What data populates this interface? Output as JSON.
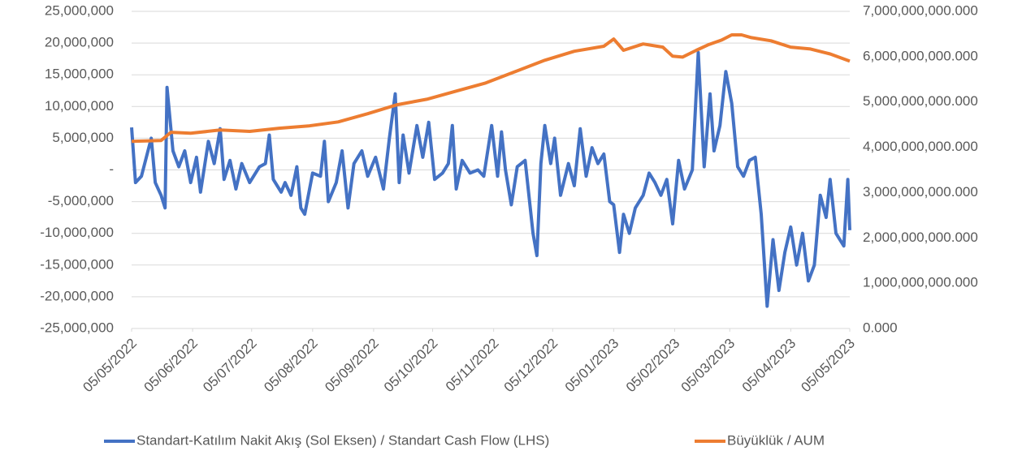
{
  "chart_data": {
    "type": "line",
    "xlim": [
      "05/05/2022",
      "05/05/2023"
    ],
    "xticks": [
      "05/05/2022",
      "05/06/2022",
      "05/07/2022",
      "05/08/2022",
      "05/09/2022",
      "05/10/2022",
      "05/11/2022",
      "05/12/2022",
      "05/01/2023",
      "05/02/2023",
      "05/03/2023",
      "05/04/2023",
      "05/05/2023"
    ],
    "ylim": [
      -25000000,
      25000000
    ],
    "yticks": [
      {
        "value": 25000000,
        "label": "25,000,000"
      },
      {
        "value": 20000000,
        "label": "20,000,000"
      },
      {
        "value": 15000000,
        "label": "15,000,000"
      },
      {
        "value": 10000000,
        "label": "10,000,000"
      },
      {
        "value": 5000000,
        "label": "5,000,000"
      },
      {
        "value": 0,
        "label": "-"
      },
      {
        "value": -5000000,
        "label": "-5,000,000"
      },
      {
        "value": -10000000,
        "label": "-10,000,000"
      },
      {
        "value": -15000000,
        "label": "-15,000,000"
      },
      {
        "value": -20000000,
        "label": "-20,000,000"
      },
      {
        "value": -25000000,
        "label": "-25,000,000"
      }
    ],
    "y2lim": [
      0,
      7000000000
    ],
    "y2ticks": [
      {
        "value": 7000000000,
        "label": "7,000,000,000.000"
      },
      {
        "value": 6000000000,
        "label": "6,000,000,000.000"
      },
      {
        "value": 5000000000,
        "label": "5,000,000,000.000"
      },
      {
        "value": 4000000000,
        "label": "4,000,000,000.000"
      },
      {
        "value": 3000000000,
        "label": "3,000,000,000.000"
      },
      {
        "value": 2000000000,
        "label": "2,000,000,000.000"
      },
      {
        "value": 1000000000,
        "label": "1,000,000,000.000"
      },
      {
        "value": 0,
        "label": "0.000"
      }
    ],
    "grid": true,
    "legend": "bottom",
    "series": [
      {
        "name": "Standart-Katılım Nakit Akış (Sol Eksen) / Standart Cash Flow (LHS)",
        "color": "#4472c4",
        "x": [
          "05/05/2022",
          "07/05/2022",
          "10/05/2022",
          "15/05/2022",
          "17/05/2022",
          "20/05/2022",
          "22/05/2022",
          "23/05/2022",
          "26/05/2022",
          "29/05/2022",
          "01/06/2022",
          "04/06/2022",
          "07/06/2022",
          "09/06/2022",
          "13/06/2022",
          "16/06/2022",
          "19/06/2022",
          "21/06/2022",
          "24/06/2022",
          "27/06/2022",
          "30/06/2022",
          "04/07/2022",
          "09/07/2022",
          "12/07/2022",
          "14/07/2022",
          "16/07/2022",
          "20/07/2022",
          "22/07/2022",
          "25/07/2022",
          "28/07/2022",
          "30/07/2022",
          "01/08/2022",
          "05/08/2022",
          "09/08/2022",
          "11/08/2022",
          "13/08/2022",
          "17/08/2022",
          "20/08/2022",
          "23/08/2022",
          "26/08/2022",
          "30/08/2022",
          "02/09/2022",
          "06/09/2022",
          "10/09/2022",
          "13/09/2022",
          "16/09/2022",
          "18/09/2022",
          "20/09/2022",
          "23/09/2022",
          "27/09/2022",
          "30/09/2022",
          "03/10/2022",
          "06/10/2022",
          "10/10/2022",
          "13/10/2022",
          "15/10/2022",
          "17/10/2022",
          "20/10/2022",
          "24/10/2022",
          "28/10/2022",
          "31/10/2022",
          "04/11/2022",
          "07/11/2022",
          "09/11/2022",
          "11/11/2022",
          "14/11/2022",
          "17/11/2022",
          "21/11/2022",
          "25/11/2022",
          "27/11/2022",
          "29/11/2022",
          "01/12/2022",
          "04/12/2022",
          "06/12/2022",
          "09/12/2022",
          "13/12/2022",
          "16/12/2022",
          "19/12/2022",
          "22/12/2022",
          "25/12/2022",
          "28/12/2022",
          "31/12/2022",
          "03/01/2023",
          "05/01/2023",
          "08/01/2023",
          "10/01/2023",
          "13/01/2023",
          "16/01/2023",
          "20/01/2023",
          "23/01/2023",
          "26/01/2023",
          "29/01/2023",
          "01/02/2023",
          "04/02/2023",
          "07/02/2023",
          "10/02/2023",
          "14/02/2023",
          "17/02/2023",
          "20/02/2023",
          "23/02/2023",
          "25/02/2023",
          "28/02/2023",
          "03/03/2023",
          "06/03/2023",
          "09/03/2023",
          "12/03/2023",
          "15/03/2023",
          "18/03/2023",
          "21/03/2023",
          "24/03/2023",
          "27/03/2023",
          "30/03/2023",
          "02/04/2023",
          "05/04/2023",
          "08/04/2023",
          "11/04/2023",
          "14/04/2023",
          "17/04/2023",
          "20/04/2023",
          "23/04/2023",
          "25/04/2023",
          "28/04/2023",
          "02/05/2023",
          "04/05/2023",
          "05/05/2023"
        ],
        "values": [
          6700000,
          -2000000,
          -1000000,
          5000000,
          -2000000,
          -4000000,
          -6000000,
          13000000,
          3000000,
          500000,
          3000000,
          -2000000,
          2000000,
          -3500000,
          4500000,
          1000000,
          6500000,
          -1500000,
          1500000,
          -3000000,
          1000000,
          -2000000,
          500000,
          1000000,
          5500000,
          -1500000,
          -3500000,
          -2000000,
          -4000000,
          500000,
          -6000000,
          -7000000,
          -500000,
          -1000000,
          4500000,
          -5000000,
          -2000000,
          3000000,
          -6000000,
          1000000,
          3000000,
          -1000000,
          2000000,
          -3000000,
          5000000,
          12000000,
          -2000000,
          5500000,
          -500000,
          7000000,
          2000000,
          7500000,
          -1500000,
          -500000,
          1000000,
          7000000,
          -3000000,
          1500000,
          -500000,
          0,
          -1000000,
          7000000,
          -1000000,
          6000000,
          0,
          -5500000,
          500000,
          1500000,
          -10000000,
          -13500000,
          1000000,
          7000000,
          1000000,
          5000000,
          -4000000,
          1000000,
          -2500000,
          6500000,
          -1000000,
          3500000,
          1000000,
          2500000,
          -5000000,
          -5500000,
          -13000000,
          -7000000,
          -10000000,
          -6000000,
          -4000000,
          -500000,
          -2000000,
          -4000000,
          -1500000,
          -8500000,
          1500000,
          -3000000,
          0,
          18500000,
          500000,
          12000000,
          3000000,
          7000000,
          15500000,
          10500000,
          500000,
          -1000000,
          1500000,
          2000000,
          -7000000,
          -21500000,
          -11000000,
          -19000000,
          -13000000,
          -9000000,
          -15000000,
          -10000000,
          -17500000,
          -15000000,
          -4000000,
          -7500000,
          -1500000,
          -10000000,
          -12000000,
          -1500000,
          -9500000
        ]
      },
      {
        "name": "Büyüklük / AUM",
        "color": "#ed7d31",
        "axis": "y2",
        "x": [
          "05/05/2022",
          "20/05/2022",
          "25/05/2022",
          "04/06/2022",
          "19/06/2022",
          "04/07/2022",
          "19/07/2022",
          "03/08/2022",
          "18/08/2022",
          "02/09/2022",
          "17/09/2022",
          "02/10/2022",
          "17/10/2022",
          "01/11/2022",
          "16/11/2022",
          "01/12/2022",
          "16/12/2022",
          "31/12/2022",
          "05/01/2023",
          "10/01/2023",
          "20/01/2023",
          "30/01/2023",
          "04/02/2023",
          "09/02/2023",
          "16/02/2023",
          "22/02/2023",
          "01/03/2023",
          "06/03/2023",
          "11/03/2023",
          "16/03/2023",
          "26/03/2023",
          "05/04/2023",
          "15/04/2023",
          "25/04/2023",
          "05/05/2023"
        ],
        "values": [
          4130000000,
          4150000000,
          4330000000,
          4310000000,
          4380000000,
          4350000000,
          4420000000,
          4470000000,
          4560000000,
          4740000000,
          4940000000,
          5060000000,
          5240000000,
          5420000000,
          5670000000,
          5920000000,
          6120000000,
          6230000000,
          6390000000,
          6140000000,
          6280000000,
          6210000000,
          6010000000,
          5990000000,
          6140000000,
          6260000000,
          6370000000,
          6480000000,
          6480000000,
          6420000000,
          6350000000,
          6210000000,
          6170000000,
          6060000000,
          5900000000
        ]
      }
    ]
  }
}
